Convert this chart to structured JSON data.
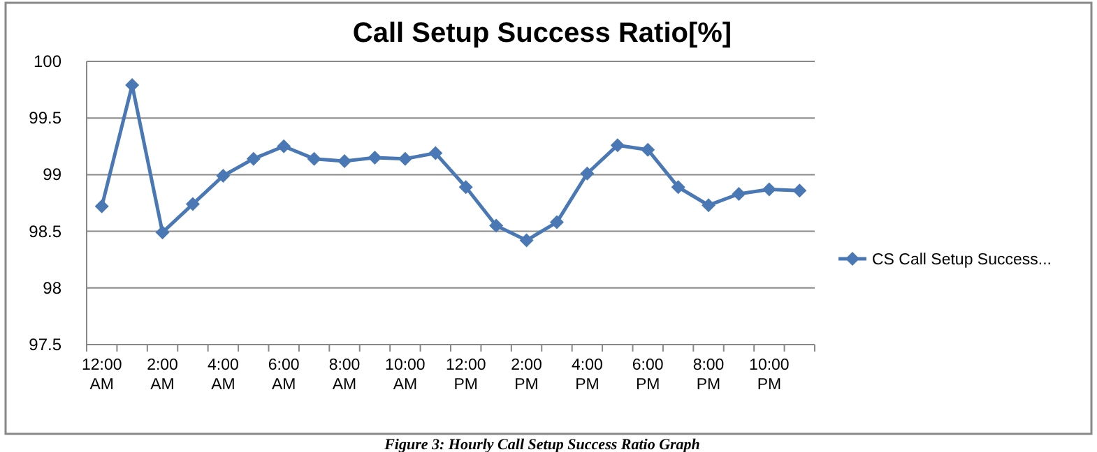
{
  "chart_data": {
    "type": "line",
    "title": "Call Setup Success Ratio[%]",
    "categories": [
      "12:00 AM",
      null,
      "2:00 AM",
      null,
      "4:00 AM",
      null,
      "6:00 AM",
      null,
      "8:00 AM",
      null,
      "10:00 AM",
      null,
      "12:00 PM",
      null,
      "2:00 PM",
      null,
      "4:00 PM",
      null,
      "6:00 PM",
      null,
      "8:00 PM",
      null,
      "10:00 PM",
      null
    ],
    "series": [
      {
        "name": "CS Call Setup Success...",
        "color": "#4a78b5",
        "values": [
          98.72,
          99.79,
          98.49,
          98.74,
          98.99,
          99.14,
          99.25,
          99.14,
          99.12,
          99.15,
          99.14,
          99.19,
          98.89,
          98.55,
          98.42,
          98.58,
          99.01,
          99.26,
          99.22,
          98.89,
          98.73,
          98.83,
          98.87,
          98.86
        ]
      }
    ],
    "ylim": [
      97.5,
      100
    ],
    "yticks": [
      97.5,
      98,
      98.5,
      99,
      99.5,
      100
    ],
    "grid": "y",
    "legend": "right",
    "marker": "diamond",
    "line_style": "solid",
    "annotations": [
      "Figure 3: Hourly Call Setup Success Ratio Graph"
    ]
  }
}
